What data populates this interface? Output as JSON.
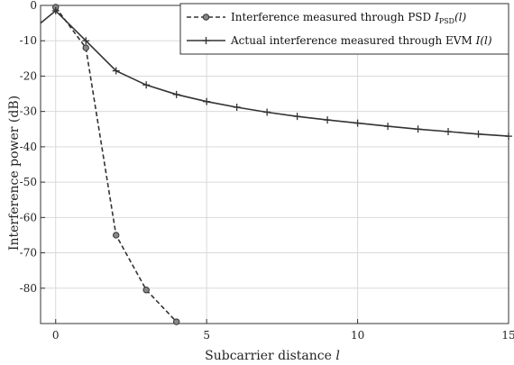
{
  "chart_data": {
    "type": "line",
    "xlabel": "Subcarrier distance ",
    "xlabel_var": "l",
    "ylabel": "Interference power (dB)",
    "xlim": [
      -0.5,
      15
    ],
    "ylim": [
      -90,
      0
    ],
    "xticks": [
      0,
      5,
      10,
      15
    ],
    "yticks": [
      0,
      -10,
      -20,
      -30,
      -40,
      -50,
      -60,
      -70,
      -80
    ],
    "grid": true,
    "legend_position": "top-right",
    "series": [
      {
        "name": "Interference measured through PSD ",
        "legend_math": "I",
        "legend_sub": "PSD",
        "legend_tail": "(l)",
        "style": "dashed",
        "marker": "circle",
        "color": "#333333",
        "x": [
          0,
          1,
          2,
          3,
          4
        ],
        "y": [
          -0.5,
          -12,
          -65,
          -80.5,
          -89.5
        ]
      },
      {
        "name": "Actual interference measured through EVM ",
        "legend_math": "I",
        "legend_tail": "(l)",
        "style": "solid",
        "marker": "plus",
        "color": "#333333",
        "x": [
          -0.5,
          0,
          1,
          2,
          3,
          4,
          5,
          6,
          7,
          8,
          9,
          10,
          11,
          12,
          13,
          14,
          15
        ],
        "y": [
          -5,
          -1.5,
          -10,
          -18.5,
          -22.5,
          -25.2,
          -27.2,
          -28.8,
          -30.2,
          -31.4,
          -32.4,
          -33.3,
          -34.2,
          -35,
          -35.7,
          -36.4,
          -37
        ]
      }
    ]
  }
}
